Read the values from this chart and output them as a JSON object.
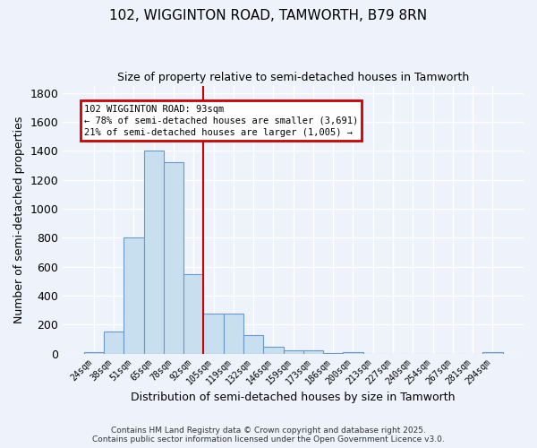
{
  "title1": "102, WIGGINTON ROAD, TAMWORTH, B79 8RN",
  "title2": "Size of property relative to semi-detached houses in Tamworth",
  "xlabel": "Distribution of semi-detached houses by size in Tamworth",
  "ylabel": "Number of semi-detached properties",
  "categories": [
    "24sqm",
    "38sqm",
    "51sqm",
    "65sqm",
    "78sqm",
    "92sqm",
    "105sqm",
    "119sqm",
    "132sqm",
    "146sqm",
    "159sqm",
    "173sqm",
    "186sqm",
    "200sqm",
    "213sqm",
    "227sqm",
    "240sqm",
    "254sqm",
    "267sqm",
    "281sqm",
    "294sqm"
  ],
  "values": [
    10,
    150,
    800,
    1400,
    1320,
    550,
    275,
    275,
    125,
    50,
    25,
    20,
    5,
    8,
    0,
    0,
    0,
    0,
    0,
    0,
    8
  ],
  "bar_color": "#c8dff0",
  "bar_edge_color": "#6699cc",
  "annotation_box_color": "#cc0000",
  "vline_color": "#cc0000",
  "vline_x": 5.5,
  "annotation_title": "102 WIGGINTON ROAD: 93sqm",
  "annotation_line1": "← 78% of semi-detached houses are smaller (3,691)",
  "annotation_line2": "21% of semi-detached houses are larger (1,005) →",
  "footer1": "Contains HM Land Registry data © Crown copyright and database right 2025.",
  "footer2": "Contains public sector information licensed under the Open Government Licence v3.0.",
  "ylim": [
    0,
    1850
  ],
  "yticks": [
    0,
    200,
    400,
    600,
    800,
    1000,
    1200,
    1400,
    1600,
    1800
  ],
  "background_color": "#eef2fb",
  "grid_color": "#ffffff"
}
